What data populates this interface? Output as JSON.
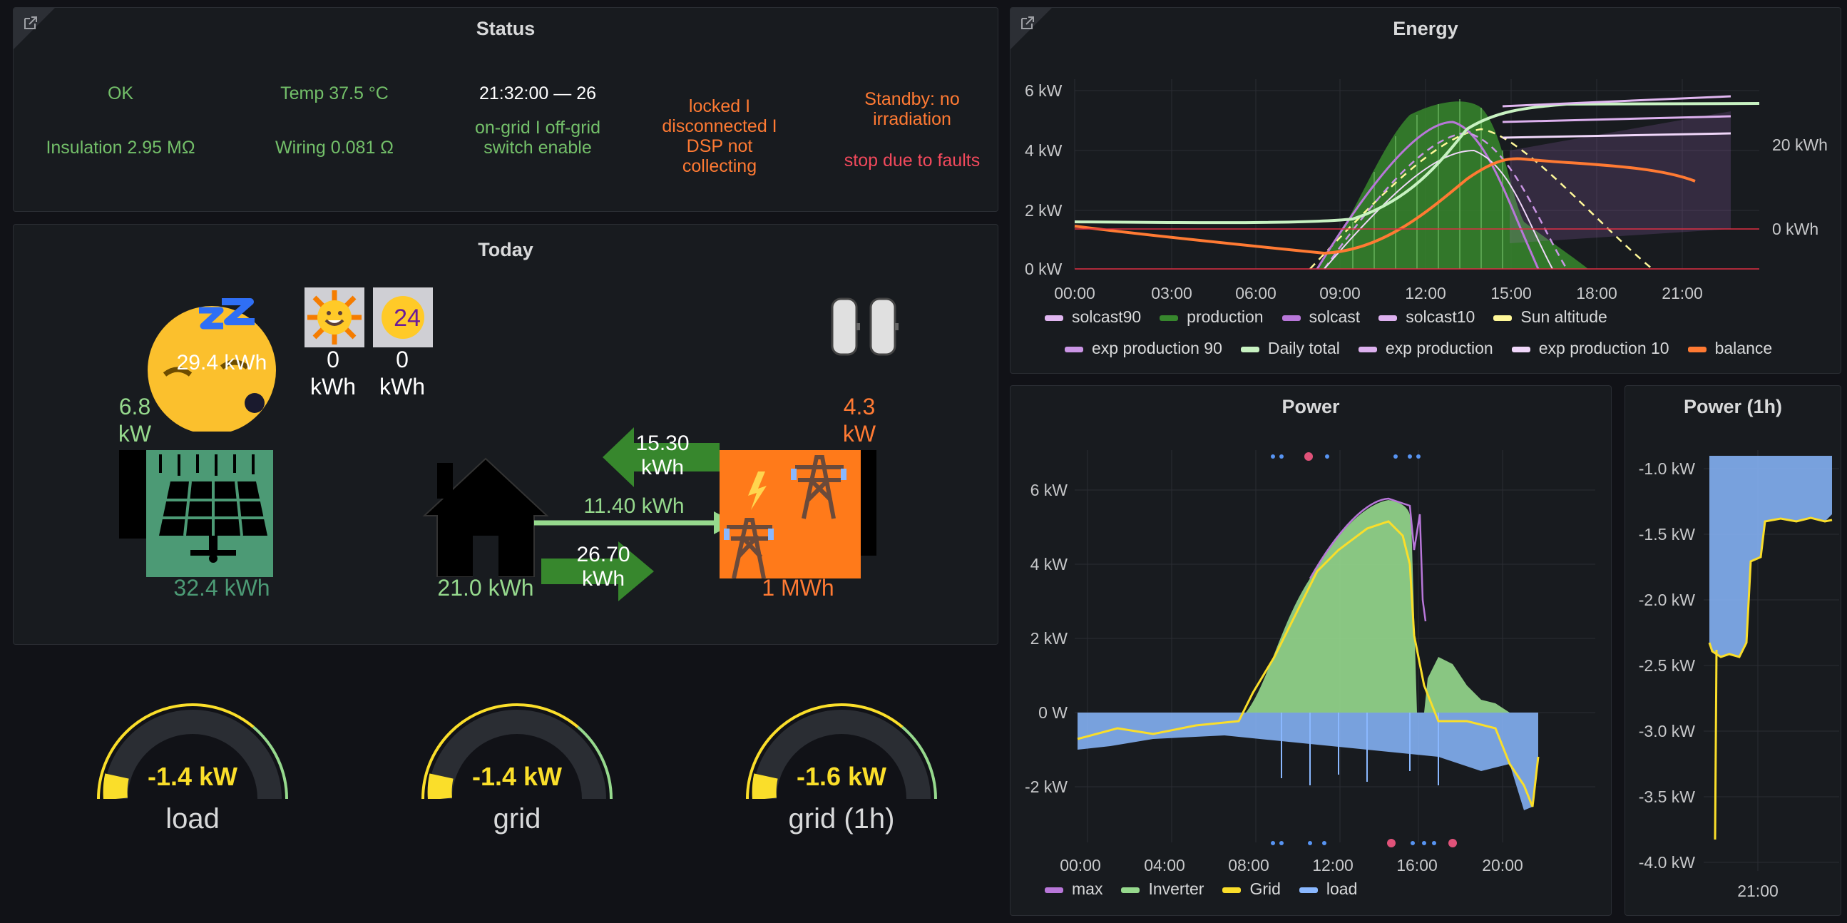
{
  "status": {
    "title": "Status",
    "ok": "OK",
    "insulation": "Insulation 2.95 MΩ",
    "temp": "Temp 37.5 °C",
    "wiring": "Wiring 0.081 Ω",
    "clock": "21:32:00 — 26",
    "grid_mode": "on-grid I off-grid switch enable",
    "locked": "locked I disconnected I DSP not collecting",
    "standby": "Standby: no irradiation",
    "fault": "stop due to faults"
  },
  "today": {
    "title": "Today",
    "solar_power": "6.8 kW",
    "solar_forecast": "29.4 kWh",
    "sun_today": "0 kWh",
    "sun_tomorrow": "0 kWh",
    "sun_tomorrow_day": "24",
    "solar_energy": "32.4 kWh",
    "house_energy": "21.0 kWh",
    "grid_power": "4.3 kW",
    "grid_energy": "1 MWh",
    "export_energy": "15.30 kWh",
    "import_energy": "11.40 kWh",
    "self_energy": "26.70 kWh"
  },
  "gauges": [
    {
      "value": "-1.4 kW",
      "label": "load",
      "level": 0.1
    },
    {
      "value": "-1.4 kW",
      "label": "grid",
      "level": 0.1
    },
    {
      "value": "-1.6 kW",
      "label": "grid (1h)",
      "level": 0.1
    }
  ],
  "energy": {
    "title": "Energy",
    "yticks_left": [
      "6 kW",
      "4 kW",
      "2 kW",
      "0 kW"
    ],
    "yticks_right": [
      "20 kWh",
      "0 kWh"
    ],
    "xticks": [
      "00:00",
      "03:00",
      "06:00",
      "09:00",
      "12:00",
      "15:00",
      "18:00",
      "21:00"
    ],
    "legend": [
      {
        "name": "solcast90",
        "color": "#e0b6f0"
      },
      {
        "name": "production",
        "color": "#37872d"
      },
      {
        "name": "solcast",
        "color": "#b877d9"
      },
      {
        "name": "solcast10",
        "color": "#dcb0ee"
      },
      {
        "name": "Sun altitude",
        "color": "#fff899"
      },
      {
        "name": "exp production 90",
        "color": "#ca95e5"
      },
      {
        "name": "Daily total",
        "color": "#c8f2c2"
      },
      {
        "name": "exp production",
        "color": "#dcb0ee"
      },
      {
        "name": "exp production 10",
        "color": "#f0d7fa"
      },
      {
        "name": "balance",
        "color": "#ff7a33"
      }
    ]
  },
  "power": {
    "title": "Power",
    "yticks": [
      "6 kW",
      "4 kW",
      "2 kW",
      "0 W",
      "-2 kW"
    ],
    "xticks": [
      "00:00",
      "04:00",
      "08:00",
      "12:00",
      "16:00",
      "20:00"
    ],
    "legend": [
      {
        "name": "max",
        "color": "#b877d9"
      },
      {
        "name": "Inverter",
        "color": "#96d98d"
      },
      {
        "name": "Grid",
        "color": "#fade2a"
      },
      {
        "name": "load",
        "color": "#8ab8ff"
      }
    ]
  },
  "power1h": {
    "title": "Power (1h)",
    "yticks": [
      "-1.0 kW",
      "-1.5 kW",
      "-2.0 kW",
      "-2.5 kW",
      "-3.0 kW",
      "-3.5 kW",
      "-4.0 kW"
    ],
    "xticks": [
      "21:00"
    ]
  }
}
